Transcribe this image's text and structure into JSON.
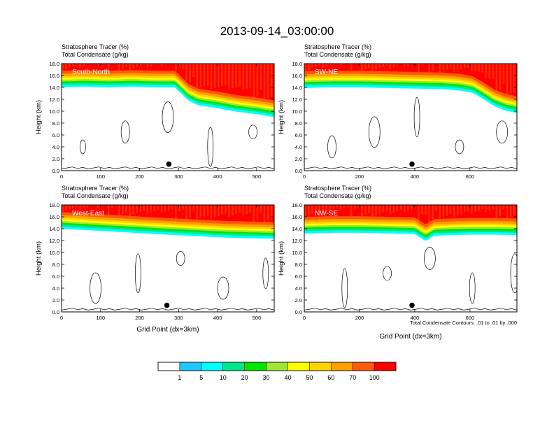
{
  "figure": {
    "title": "2013-09-14_03:00:00",
    "footnote": "Total Condensate Contours: .01 to .01 by .000"
  },
  "chart_data": [
    {
      "type": "heatmap",
      "id": "south-north",
      "panel_label": "South-North",
      "subtitle_lines": [
        "Stratosphere Tracer   (%)",
        "Total Condensate   (g/kg)"
      ],
      "ylabel": "Height (km)",
      "xlabel": "",
      "xlim": [
        0,
        545
      ],
      "ylim": [
        0,
        18
      ],
      "x_ticks": [
        0,
        100,
        200,
        300,
        400,
        500
      ],
      "y_ticks": [
        "0.0",
        "2.0",
        "4.0",
        "6.0",
        "8.0",
        "10.0",
        "12.0",
        "14.0",
        "16.0",
        "18.0"
      ],
      "marker": {
        "x": 275,
        "y": 1.1
      },
      "tropopause_km": [
        [
          0,
          14.5
        ],
        [
          60,
          14.6
        ],
        [
          120,
          14.5
        ],
        [
          180,
          14.6
        ],
        [
          240,
          14.5
        ],
        [
          290,
          14.5
        ],
        [
          305,
          13.6
        ],
        [
          325,
          12.3
        ],
        [
          350,
          11.5
        ],
        [
          400,
          11.0
        ],
        [
          450,
          10.4
        ],
        [
          500,
          10.0
        ],
        [
          545,
          9.5
        ]
      ]
    },
    {
      "type": "heatmap",
      "id": "sw-ne",
      "panel_label": "SW-NE",
      "subtitle_lines": [
        "Stratosphere Tracer   (%)",
        "Total Condensate   (g/kg)"
      ],
      "ylabel": "Height (km)",
      "xlabel": "",
      "xlim": [
        0,
        770
      ],
      "ylim": [
        0,
        18
      ],
      "x_ticks": [
        0,
        200,
        400,
        600
      ],
      "y_ticks": [
        "0.0",
        "2.0",
        "4.0",
        "6.0",
        "8.0",
        "10.0",
        "12.0",
        "14.0",
        "16.0",
        "18.0"
      ],
      "marker": {
        "x": 390,
        "y": 1.1
      },
      "tropopause_km": [
        [
          0,
          14.4
        ],
        [
          100,
          14.5
        ],
        [
          200,
          14.5
        ],
        [
          300,
          14.4
        ],
        [
          400,
          14.3
        ],
        [
          500,
          14.2
        ],
        [
          560,
          14.0
        ],
        [
          610,
          13.6
        ],
        [
          650,
          12.5
        ],
        [
          690,
          11.3
        ],
        [
          730,
          10.6
        ],
        [
          770,
          10.2
        ]
      ]
    },
    {
      "type": "heatmap",
      "id": "west-east",
      "panel_label": "West-East",
      "subtitle_lines": [
        "Stratosphere Tracer   (%)",
        "Total Condensate   (g/kg)"
      ],
      "ylabel": "Height (km)",
      "xlabel": "Grid Point (dx=3km)",
      "xlim": [
        0,
        545
      ],
      "ylim": [
        0,
        18
      ],
      "x_ticks": [
        0,
        100,
        200,
        300,
        400,
        500
      ],
      "y_ticks": [
        "0.0",
        "2.0",
        "4.0",
        "6.0",
        "8.0",
        "10.0",
        "12.0",
        "14.0",
        "16.0",
        "18.0"
      ],
      "marker": {
        "x": 270,
        "y": 1.1
      },
      "tropopause_km": [
        [
          0,
          14.5
        ],
        [
          80,
          14.2
        ],
        [
          160,
          13.9
        ],
        [
          240,
          13.6
        ],
        [
          300,
          13.4
        ],
        [
          360,
          13.2
        ],
        [
          420,
          13.0
        ],
        [
          480,
          12.9
        ],
        [
          545,
          12.8
        ]
      ]
    },
    {
      "type": "heatmap",
      "id": "nw-se",
      "panel_label": "NW-SE",
      "subtitle_lines": [
        "Stratosphere Tracer   (%)",
        "Total Condensate   (g/kg)"
      ],
      "ylabel": "Height (km)",
      "xlabel": "Grid Point (dx=3km)",
      "xlim": [
        0,
        770
      ],
      "ylim": [
        0,
        18
      ],
      "x_ticks": [
        0,
        200,
        400,
        600
      ],
      "y_ticks": [
        "0.0",
        "2.0",
        "4.0",
        "6.0",
        "8.0",
        "10.0",
        "12.0",
        "14.0",
        "16.0",
        "18.0"
      ],
      "marker": {
        "x": 390,
        "y": 1.1
      },
      "tropopause_km": [
        [
          0,
          13.7
        ],
        [
          100,
          13.8
        ],
        [
          200,
          13.8
        ],
        [
          300,
          13.7
        ],
        [
          400,
          13.6
        ],
        [
          440,
          12.4
        ],
        [
          470,
          13.3
        ],
        [
          520,
          13.4
        ],
        [
          600,
          13.5
        ],
        [
          700,
          13.5
        ],
        [
          770,
          13.4
        ]
      ]
    }
  ],
  "colorbar": {
    "colors": [
      "#ffffff",
      "#1e8cf0",
      "#1ec8ff",
      "#00ffff",
      "#00e68c",
      "#00e600",
      "#a0e632",
      "#ffff00",
      "#ffd200",
      "#ffa000",
      "#ff5a0a",
      "#ff0000"
    ],
    "labels": [
      "1",
      "5",
      "10",
      "20",
      "30",
      "40",
      "50",
      "60",
      "70",
      "100"
    ]
  }
}
